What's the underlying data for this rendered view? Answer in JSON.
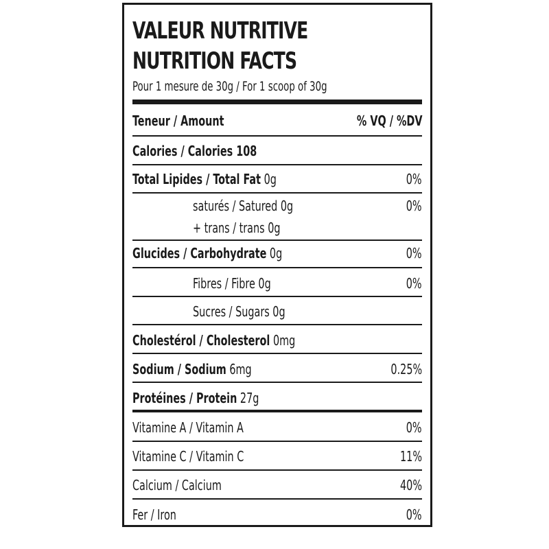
{
  "title_fr": "VALEUR NUTRITIVE",
  "title_en": "NUTRITION FACTS",
  "serving": "Pour 1 mesure de 30g / For 1 scoop of 30g",
  "header": {
    "amount": "Teneur / Amount",
    "dv": "% VQ / %DV"
  },
  "calories": {
    "label": "Calories / Calories 108"
  },
  "nutrients": [
    {
      "label": "Total Lipides / Total Fat",
      "amount": "0g",
      "dv": "0%"
    },
    {
      "label": "saturés / Satured 0g",
      "dv": "0%"
    },
    {
      "label": "+ trans / trans 0g"
    },
    {
      "label": "Glucides / Carbohydrate",
      "amount": "0g",
      "dv": "0%"
    },
    {
      "label": "Fibres / Fibre 0g",
      "dv": "0%"
    },
    {
      "label": "Sucres / Sugars 0g"
    },
    {
      "label": "Cholestérol / Cholesterol",
      "amount": "0mg"
    },
    {
      "label": "Sodium / Sodium",
      "amount": "6mg",
      "dv": "0.25%"
    },
    {
      "label": "Protéines / Protein",
      "amount": "27g"
    }
  ],
  "vitamins": [
    {
      "label": "Vitamine A / Vitamin A",
      "dv": "0%"
    },
    {
      "label": "Vitamine C / Vitamin C",
      "dv": "11%"
    },
    {
      "label": "Calcium / Calcium",
      "dv": "40%"
    },
    {
      "label": "Fer / Iron",
      "dv": "0%"
    }
  ]
}
